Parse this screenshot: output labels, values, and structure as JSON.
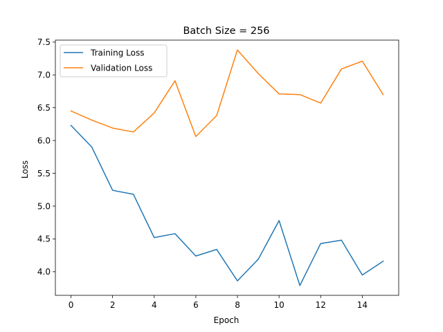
{
  "chart_data": {
    "type": "line",
    "title": "Batch Size = 256",
    "xlabel": "Epoch",
    "ylabel": "Loss",
    "x": [
      0,
      1,
      2,
      3,
      4,
      5,
      6,
      7,
      8,
      9,
      10,
      11,
      12,
      13,
      14,
      15
    ],
    "xlim": [
      -0.75,
      15.75
    ],
    "ylim": [
      3.64,
      7.53
    ],
    "xticks": [
      0,
      2,
      4,
      6,
      8,
      10,
      12,
      14
    ],
    "yticks": [
      4.0,
      4.5,
      5.0,
      5.5,
      6.0,
      6.5,
      7.0,
      7.5
    ],
    "xtick_labels": [
      "0",
      "2",
      "4",
      "6",
      "8",
      "10",
      "12",
      "14"
    ],
    "ytick_labels": [
      "4.0",
      "4.5",
      "5.0",
      "5.5",
      "6.0",
      "6.5",
      "7.0",
      "7.5"
    ],
    "grid": false,
    "legend_position": "top-left",
    "series": [
      {
        "name": "Training Loss",
        "color": "#1f77b4",
        "values": [
          6.23,
          5.9,
          5.24,
          5.18,
          4.52,
          4.58,
          4.24,
          4.34,
          3.86,
          4.19,
          4.78,
          3.79,
          4.43,
          4.48,
          3.95,
          4.16
        ]
      },
      {
        "name": "Validation Loss",
        "color": "#ff7f0e",
        "values": [
          6.45,
          6.31,
          6.19,
          6.13,
          6.42,
          6.91,
          6.06,
          6.38,
          7.38,
          7.02,
          6.71,
          6.7,
          6.57,
          7.09,
          7.21,
          6.7
        ]
      }
    ]
  }
}
